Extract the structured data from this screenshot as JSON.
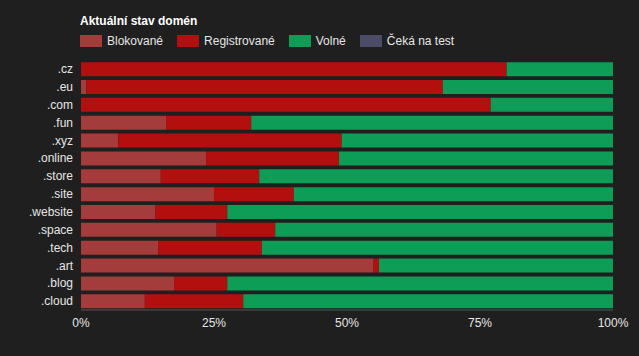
{
  "chart_data": {
    "type": "bar",
    "title": "Aktuální stav domén",
    "orientation": "horizontal",
    "stacked": true,
    "grid": false,
    "legend": "top-left",
    "categories": [
      ".cz",
      ".eu",
      ".com",
      ".fun",
      ".xyz",
      ".online",
      ".store",
      ".site",
      ".website",
      ".space",
      ".tech",
      ".art",
      ".blog",
      ".cloud"
    ],
    "series": [
      {
        "name": "Blokované",
        "color": "#a33c3a",
        "values": [
          0,
          1,
          0,
          16,
          7,
          23.5,
          15,
          25,
          14,
          25.5,
          14.5,
          55,
          17.5,
          12
        ]
      },
      {
        "name": "Registrované",
        "color": "#b30f0f",
        "values": [
          80,
          67,
          77,
          16,
          42,
          25,
          18.5,
          15,
          13.5,
          11,
          19.5,
          1,
          10,
          18.5
        ]
      },
      {
        "name": "Volné",
        "color": "#0e9d57",
        "values": [
          20,
          32,
          23,
          68,
          51,
          51.5,
          66.5,
          60,
          72.5,
          63.5,
          66,
          44,
          72.5,
          69.5
        ]
      },
      {
        "name": "Čeká na test",
        "color": "#4b4c66",
        "values": [
          0,
          0,
          0,
          0,
          0,
          0,
          0,
          0,
          0,
          0,
          0,
          0,
          0,
          0
        ]
      }
    ],
    "xlim": [
      0,
      100
    ],
    "xticks": [
      {
        "value": 0,
        "label": "0%"
      },
      {
        "value": 25,
        "label": "25%"
      },
      {
        "value": 50,
        "label": "50%"
      },
      {
        "value": 75,
        "label": "75%"
      },
      {
        "value": 100,
        "label": "100%"
      }
    ]
  }
}
